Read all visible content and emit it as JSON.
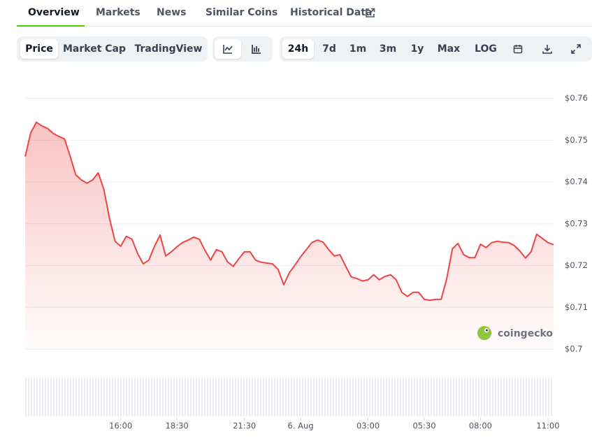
{
  "tabs": [
    "Overview",
    "Markets",
    "News",
    "Similar Coins",
    "Historical Data"
  ],
  "toolbar": {
    "views": [
      "Price",
      "Market Cap",
      "TradingView"
    ],
    "ranges": [
      "24h",
      "7d",
      "1m",
      "3m",
      "1y",
      "Max",
      "LOG"
    ]
  },
  "watermark": "coingecko",
  "chart_data": {
    "type": "area",
    "color": "#ef4444",
    "grid": true,
    "x": [
      11.75,
      12,
      12.25,
      12.5,
      12.75,
      13,
      13.25,
      13.5,
      13.75,
      14,
      14.25,
      14.5,
      14.75,
      15,
      15.25,
      15.5,
      15.75,
      16,
      16.25,
      16.5,
      16.75,
      17,
      17.25,
      17.5,
      17.75,
      18,
      18.25,
      18.5,
      18.75,
      19,
      19.25,
      19.5,
      19.75,
      20,
      20.25,
      20.5,
      20.75,
      21,
      21.25,
      21.5,
      21.75,
      22,
      22.25,
      22.5,
      22.75,
      23,
      23.25,
      23.5,
      23.75,
      24,
      24.25,
      24.5,
      24.75,
      25,
      25.25,
      25.5,
      25.75,
      26,
      26.25,
      26.5,
      26.75,
      27,
      27.25,
      27.5,
      27.75,
      28,
      28.25,
      28.5,
      28.75,
      29,
      29.25,
      29.5,
      29.75,
      30,
      30.25,
      30.5,
      30.75,
      31,
      31.25,
      31.5,
      31.75,
      32,
      32.25,
      32.5,
      32.75,
      33,
      33.25,
      33.5,
      33.75,
      34,
      34.25,
      34.5,
      34.75,
      35,
      35.25
    ],
    "values": [
      0.7461,
      0.7518,
      0.7543,
      0.7534,
      0.7528,
      0.7516,
      0.7509,
      0.7503,
      0.7462,
      0.7417,
      0.7405,
      0.7397,
      0.7405,
      0.7422,
      0.7382,
      0.7313,
      0.7258,
      0.7246,
      0.727,
      0.7263,
      0.7229,
      0.7204,
      0.7213,
      0.7246,
      0.7273,
      0.7223,
      0.7233,
      0.7245,
      0.7255,
      0.7261,
      0.7268,
      0.7263,
      0.7236,
      0.7213,
      0.7238,
      0.7233,
      0.7209,
      0.7198,
      0.7216,
      0.7233,
      0.7233,
      0.7213,
      0.7208,
      0.7206,
      0.7204,
      0.7191,
      0.7154,
      0.7183,
      0.7201,
      0.7221,
      0.7238,
      0.7255,
      0.7261,
      0.7256,
      0.7238,
      0.7223,
      0.7226,
      0.7199,
      0.7173,
      0.7169,
      0.7163,
      0.7166,
      0.7178,
      0.7166,
      0.7174,
      0.7178,
      0.7166,
      0.7136,
      0.7126,
      0.7136,
      0.7136,
      0.7119,
      0.7117,
      0.7119,
      0.7119,
      0.7169,
      0.724,
      0.7253,
      0.7226,
      0.7219,
      0.7219,
      0.7251,
      0.7243,
      0.7255,
      0.7258,
      0.7256,
      0.7255,
      0.7248,
      0.7235,
      0.7218,
      0.7233,
      0.7275,
      0.7265,
      0.7255,
      0.725
    ],
    "xlim": [
      11.75,
      35.25
    ],
    "xticks": [
      {
        "value": 16,
        "label": "16:00"
      },
      {
        "value": 18.5,
        "label": "18:30"
      },
      {
        "value": 21.5,
        "label": "21:30"
      },
      {
        "value": 24,
        "label": "6. Aug"
      },
      {
        "value": 27,
        "label": "03:00"
      },
      {
        "value": 29.5,
        "label": "05:30"
      },
      {
        "value": 32,
        "label": "08:00"
      },
      {
        "value": 35,
        "label": "11:00"
      }
    ],
    "ylim": [
      0.7,
      0.7668
    ],
    "yticks": [
      {
        "value": 0.7,
        "label": "$0.7"
      },
      {
        "value": 0.71,
        "label": "$0.71"
      },
      {
        "value": 0.72,
        "label": "$0.72"
      },
      {
        "value": 0.73,
        "label": "$0.73"
      },
      {
        "value": 0.74,
        "label": "$0.74"
      },
      {
        "value": 0.75,
        "label": "$0.75"
      },
      {
        "value": 0.76,
        "label": "$0.76"
      }
    ]
  }
}
